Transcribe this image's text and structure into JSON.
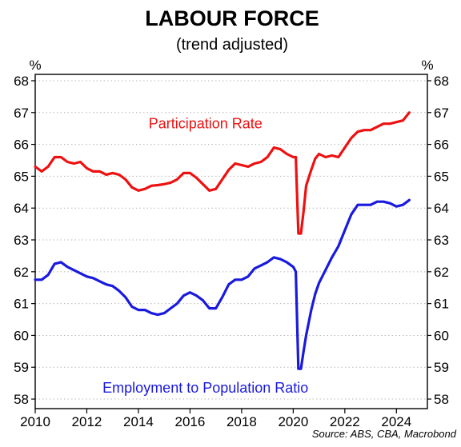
{
  "chart_data": {
    "type": "line",
    "title": "LABOUR FORCE",
    "subtitle": "(trend adjusted)",
    "y_unit_left": "%",
    "y_unit_right": "%",
    "xlim": [
      2010,
      2025.2
    ],
    "ylim": [
      57.7,
      68.2
    ],
    "x_ticks": [
      2010,
      2012,
      2014,
      2016,
      2018,
      2020,
      2022,
      2024
    ],
    "x_tick_labels": [
      "2010",
      "2012",
      "2014",
      "2016",
      "2018",
      "2020",
      "2022",
      "2024"
    ],
    "y_ticks": [
      58,
      59,
      60,
      61,
      62,
      63,
      64,
      65,
      66,
      67,
      68
    ],
    "y_tick_labels": [
      "58",
      "59",
      "60",
      "61",
      "62",
      "63",
      "64",
      "65",
      "66",
      "67",
      "68"
    ],
    "grid": "horizontal dotted",
    "source": "Source: ABS, CBA, Macrobond",
    "series": [
      {
        "name": "Participation Rate",
        "color": "#ee1111",
        "label_at": [
          2016.6,
          66.5
        ],
        "points": [
          [
            2010.0,
            65.3
          ],
          [
            2010.25,
            65.15
          ],
          [
            2010.5,
            65.3
          ],
          [
            2010.75,
            65.6
          ],
          [
            2011.0,
            65.6
          ],
          [
            2011.25,
            65.45
          ],
          [
            2011.5,
            65.4
          ],
          [
            2011.75,
            65.45
          ],
          [
            2012.0,
            65.25
          ],
          [
            2012.25,
            65.15
          ],
          [
            2012.5,
            65.15
          ],
          [
            2012.75,
            65.05
          ],
          [
            2013.0,
            65.1
          ],
          [
            2013.25,
            65.05
          ],
          [
            2013.5,
            64.9
          ],
          [
            2013.75,
            64.65
          ],
          [
            2014.0,
            64.55
          ],
          [
            2014.25,
            64.6
          ],
          [
            2014.5,
            64.7
          ],
          [
            2014.75,
            64.72
          ],
          [
            2015.0,
            64.75
          ],
          [
            2015.25,
            64.8
          ],
          [
            2015.5,
            64.9
          ],
          [
            2015.75,
            65.1
          ],
          [
            2016.0,
            65.1
          ],
          [
            2016.25,
            64.95
          ],
          [
            2016.5,
            64.75
          ],
          [
            2016.75,
            64.55
          ],
          [
            2017.0,
            64.6
          ],
          [
            2017.25,
            64.9
          ],
          [
            2017.5,
            65.2
          ],
          [
            2017.75,
            65.4
          ],
          [
            2018.0,
            65.35
          ],
          [
            2018.25,
            65.3
          ],
          [
            2018.5,
            65.4
          ],
          [
            2018.75,
            65.45
          ],
          [
            2019.0,
            65.6
          ],
          [
            2019.25,
            65.9
          ],
          [
            2019.5,
            65.85
          ],
          [
            2019.75,
            65.7
          ],
          [
            2020.0,
            65.6
          ],
          [
            2020.1,
            65.6
          ],
          [
            2020.2,
            63.2
          ],
          [
            2020.3,
            63.2
          ],
          [
            2020.4,
            63.9
          ],
          [
            2020.5,
            64.7
          ],
          [
            2020.7,
            65.2
          ],
          [
            2020.85,
            65.55
          ],
          [
            2021.0,
            65.7
          ],
          [
            2021.25,
            65.6
          ],
          [
            2021.5,
            65.65
          ],
          [
            2021.75,
            65.6
          ],
          [
            2022.0,
            65.9
          ],
          [
            2022.25,
            66.2
          ],
          [
            2022.5,
            66.4
          ],
          [
            2022.75,
            66.45
          ],
          [
            2023.0,
            66.45
          ],
          [
            2023.25,
            66.55
          ],
          [
            2023.5,
            66.65
          ],
          [
            2023.75,
            66.65
          ],
          [
            2024.0,
            66.7
          ],
          [
            2024.25,
            66.75
          ],
          [
            2024.5,
            67.0
          ]
        ]
      },
      {
        "name": "Employment to Population Ratio",
        "color": "#1a1adf",
        "label_at": [
          2016.6,
          58.2
        ],
        "points": [
          [
            2010.0,
            61.75
          ],
          [
            2010.25,
            61.75
          ],
          [
            2010.5,
            61.9
          ],
          [
            2010.75,
            62.25
          ],
          [
            2011.0,
            62.3
          ],
          [
            2011.25,
            62.15
          ],
          [
            2011.5,
            62.05
          ],
          [
            2011.75,
            61.95
          ],
          [
            2012.0,
            61.85
          ],
          [
            2012.25,
            61.8
          ],
          [
            2012.5,
            61.7
          ],
          [
            2012.75,
            61.6
          ],
          [
            2013.0,
            61.55
          ],
          [
            2013.25,
            61.4
          ],
          [
            2013.5,
            61.2
          ],
          [
            2013.75,
            60.9
          ],
          [
            2014.0,
            60.8
          ],
          [
            2014.25,
            60.8
          ],
          [
            2014.5,
            60.7
          ],
          [
            2014.75,
            60.65
          ],
          [
            2015.0,
            60.7
          ],
          [
            2015.25,
            60.85
          ],
          [
            2015.5,
            61.0
          ],
          [
            2015.75,
            61.25
          ],
          [
            2016.0,
            61.35
          ],
          [
            2016.25,
            61.25
          ],
          [
            2016.5,
            61.1
          ],
          [
            2016.75,
            60.85
          ],
          [
            2017.0,
            60.85
          ],
          [
            2017.25,
            61.2
          ],
          [
            2017.5,
            61.6
          ],
          [
            2017.75,
            61.75
          ],
          [
            2018.0,
            61.75
          ],
          [
            2018.25,
            61.85
          ],
          [
            2018.5,
            62.1
          ],
          [
            2018.75,
            62.2
          ],
          [
            2019.0,
            62.3
          ],
          [
            2019.25,
            62.45
          ],
          [
            2019.5,
            62.4
          ],
          [
            2019.75,
            62.3
          ],
          [
            2020.0,
            62.15
          ],
          [
            2020.1,
            62.0
          ],
          [
            2020.2,
            58.95
          ],
          [
            2020.3,
            58.95
          ],
          [
            2020.4,
            59.5
          ],
          [
            2020.5,
            60.0
          ],
          [
            2020.7,
            60.8
          ],
          [
            2020.85,
            61.3
          ],
          [
            2021.0,
            61.65
          ],
          [
            2021.25,
            62.05
          ],
          [
            2021.5,
            62.45
          ],
          [
            2021.75,
            62.8
          ],
          [
            2022.0,
            63.3
          ],
          [
            2022.25,
            63.8
          ],
          [
            2022.5,
            64.1
          ],
          [
            2022.75,
            64.1
          ],
          [
            2023.0,
            64.1
          ],
          [
            2023.25,
            64.2
          ],
          [
            2023.5,
            64.2
          ],
          [
            2023.75,
            64.15
          ],
          [
            2024.0,
            64.05
          ],
          [
            2024.25,
            64.1
          ],
          [
            2024.5,
            64.25
          ]
        ]
      }
    ]
  }
}
